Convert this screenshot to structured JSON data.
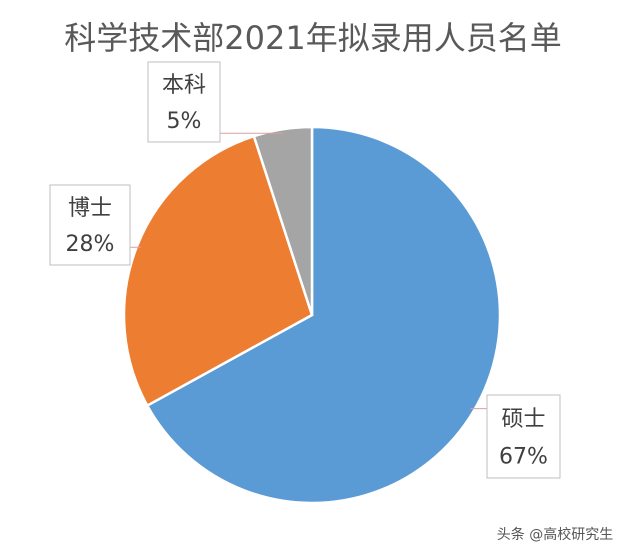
{
  "chart_data": {
    "type": "pie",
    "title": "科学技术部2021年拟录用人员名单",
    "categories": [
      "硕士",
      "博士",
      "本科"
    ],
    "values": [
      67,
      28,
      5
    ],
    "value_labels": [
      "67%",
      "28%",
      "5%"
    ],
    "colors": [
      "#5b9bd5",
      "#ed7d31",
      "#a5a5a5"
    ],
    "watermark": "头条 @高校研究生"
  }
}
